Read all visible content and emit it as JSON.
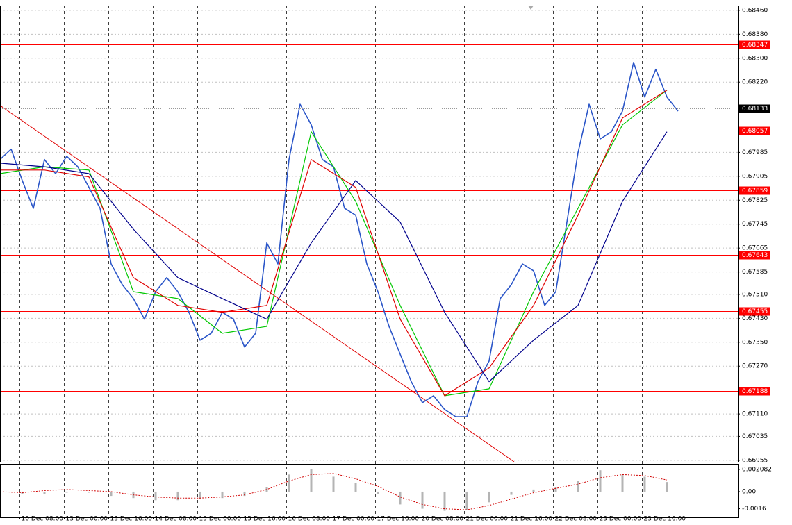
{
  "chart_data": [
    {
      "type": "line",
      "x": [
        0,
        4,
        8,
        12,
        16,
        20,
        24,
        28,
        32,
        36,
        40,
        44,
        48,
        52,
        56,
        60,
        64,
        68,
        72,
        76,
        80,
        84,
        88,
        92,
        96,
        100,
        104,
        108,
        112,
        116,
        120,
        124,
        128,
        132,
        136,
        140,
        144,
        148,
        152,
        156,
        160,
        164,
        168,
        172,
        176,
        180,
        184,
        188,
        192,
        196,
        200,
        204,
        208,
        212,
        216,
        220,
        224,
        228,
        232,
        236,
        240,
        244
      ],
      "xlim": [
        0,
        265.5
      ],
      "xticks": [
        {
          "value": 7,
          "label": "10 Dec 08:00"
        },
        {
          "value": 23,
          "label": "13 Dec 00:00"
        },
        {
          "value": 39,
          "label": "13 Dec 16:00"
        },
        {
          "value": 55,
          "label": "14 Dec 08:00"
        },
        {
          "value": 71,
          "label": "15 Dec 00:00"
        },
        {
          "value": 87,
          "label": "15 Dec 16:00"
        },
        {
          "value": 103,
          "label": "16 Dec 08:00"
        },
        {
          "value": 119,
          "label": "17 Dec 00:00"
        },
        {
          "value": 135,
          "label": "17 Dec 16:00"
        },
        {
          "value": 151,
          "label": "20 Dec 08:00"
        },
        {
          "value": 167,
          "label": "21 Dec 00:00"
        },
        {
          "value": 183,
          "label": "21 Dec 16:00"
        },
        {
          "value": 199,
          "label": "22 Dec 08:00"
        },
        {
          "value": 215,
          "label": "23 Dec 00:00"
        },
        {
          "value": 231,
          "label": "23 Dec 16:00"
        }
      ],
      "ylim": [
        0.6695,
        0.68476
      ],
      "yticks": [
        {
          "value": 0.6846,
          "label": "0.68460"
        },
        {
          "value": 0.6838,
          "label": "0.68380"
        },
        {
          "value": 0.683,
          "label": "0.68300"
        },
        {
          "value": 0.6822,
          "label": "0.68220"
        },
        0.67985,
        0.67905,
        0.67825,
        0.67745,
        0.67665,
        0.67585,
        {
          "value": 0.6751,
          "label": "0.67510"
        },
        {
          "value": 0.6743,
          "label": "0.67430"
        },
        {
          "value": 0.6735,
          "label": "0.67350"
        },
        {
          "value": 0.6727,
          "label": "0.67270"
        },
        {
          "value": 0.6711,
          "label": "0.67110"
        },
        0.67035,
        0.66955
      ],
      "grid": true,
      "series": [
        {
          "color": "#2a55c8",
          "values": [
            0.67961,
            0.67996,
            0.67891,
            0.67798,
            0.67961,
            0.67914,
            0.67972,
            0.67937,
            0.67868,
            0.67798,
            0.67612,
            0.67543,
            0.67496,
            0.67427,
            0.67519,
            0.67566,
            0.67519,
            0.6745,
            0.67357,
            0.6738,
            0.6745,
            0.67427,
            0.67334,
            0.6738,
            0.67682,
            0.67612,
            0.67961,
            0.68146,
            0.68077,
            0.67961,
            0.67937,
            0.67798,
            0.67775,
            0.67612,
            0.67519,
            0.67403,
            0.6731,
            0.67218,
            0.67148,
            0.67171,
            0.67125,
            0.67101,
            0.67101,
            0.67218,
            0.67287,
            0.67496,
            0.67543,
            0.67612,
            0.67589,
            0.67473,
            0.67519,
            0.67752,
            0.67984,
            0.68146,
            0.6803,
            0.68054,
            0.68123,
            0.68286,
            0.6817,
            0.68263,
            0.6817,
            0.68123
          ]
        },
        {
          "color": "#00c800",
          "x": [
            0,
            16,
            32,
            48,
            64,
            80,
            96,
            112,
            128,
            144,
            160,
            176,
            192,
            208,
            224,
            240
          ],
          "values": [
            0.67914,
            0.67937,
            0.67926,
            0.67519,
            0.67496,
            0.6738,
            0.67403,
            0.68054,
            0.67821,
            0.67473,
            0.67171,
            0.67194,
            0.67519,
            0.67798,
            0.68077,
            0.68193
          ]
        },
        {
          "color": "#e00000",
          "x": [
            0,
            16,
            32,
            48,
            64,
            80,
            96,
            112,
            128,
            144,
            160,
            176,
            192,
            208,
            224,
            240
          ],
          "values": [
            0.67926,
            0.67926,
            0.67903,
            0.67566,
            0.67473,
            0.6745,
            0.67473,
            0.67961,
            0.67868,
            0.67427,
            0.67171,
            0.67264,
            0.67473,
            0.67775,
            0.681,
            0.68193
          ]
        },
        {
          "color": "#00008b",
          "x": [
            0,
            16,
            32,
            48,
            64,
            80,
            96,
            112,
            128,
            144,
            160,
            176,
            192,
            208,
            224,
            240
          ],
          "values": [
            0.67949,
            0.67937,
            0.67914,
            0.67728,
            0.67566,
            0.67496,
            0.67427,
            0.67682,
            0.67891,
            0.67752,
            0.6745,
            0.67218,
            0.67357,
            0.67473,
            0.67821,
            0.68054
          ]
        }
      ],
      "levels": {
        "color": "#ff0000",
        "values": [
          0.68347,
          0.68057,
          0.67859,
          0.67643,
          0.67455,
          0.67188
        ]
      },
      "current_price": 0.68133,
      "trendline": {
        "color": "#e00000",
        "x": [
          0,
          185
        ],
        "values": [
          0.68142,
          0.6695
        ]
      }
    },
    {
      "type": "bar",
      "x": [
        0,
        8,
        16,
        24,
        32,
        40,
        48,
        56,
        64,
        72,
        80,
        88,
        96,
        104,
        112,
        120,
        128,
        136,
        144,
        152,
        160,
        168,
        176,
        184,
        192,
        200,
        208,
        216,
        224,
        232,
        240
      ],
      "xlim": [
        0,
        265.5
      ],
      "ylim": [
        -0.00241,
        0.0026
      ],
      "yticks": [
        0.002082,
        {
          "value": 0,
          "label": "0.00"
        },
        -0.0016
      ],
      "color": "#b4b4b4",
      "values": [
        -0.0001,
        -0.0002,
        -0.0002,
        -0.0001,
        -0.0001,
        -0.0004,
        -0.0006,
        -0.0008,
        -0.0008,
        -0.0007,
        -0.0006,
        -0.0004,
        0.0004,
        0.0016,
        0.0021,
        0.0014,
        0.0008,
        -0.0002,
        -0.0012,
        -0.0016,
        -0.0018,
        -0.0017,
        -0.001,
        -0.0003,
        0.0002,
        0.0004,
        0.001,
        0.002,
        0.0016,
        0.0014,
        0.0009
      ],
      "signal": {
        "color": "#d00000",
        "values": [
          0,
          -0.0001,
          0.0001,
          0.0002,
          0.0001,
          0,
          -0.0003,
          -0.0005,
          -0.0006,
          -0.0006,
          -0.0005,
          -0.0003,
          0.0002,
          0.001,
          0.0016,
          0.0017,
          0.0012,
          0.0005,
          -0.0005,
          -0.0012,
          -0.0016,
          -0.0017,
          -0.0013,
          -0.0007,
          -0.0001,
          0.0003,
          0.0007,
          0.0013,
          0.0016,
          0.0015,
          0.0011
        ]
      }
    }
  ]
}
